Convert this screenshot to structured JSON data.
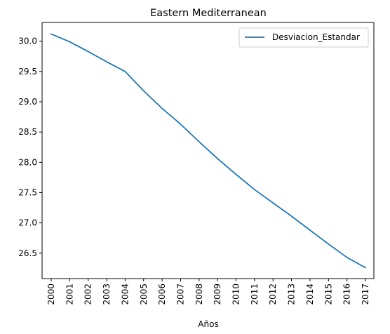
{
  "chart_data": {
    "type": "line",
    "title": "Eastern Mediterranean",
    "xlabel": "Años",
    "ylabel": "",
    "categories": [
      "2000",
      "2001",
      "2002",
      "2003",
      "2004",
      "2005",
      "2006",
      "2007",
      "2008",
      "2009",
      "2010",
      "2011",
      "2012",
      "2013",
      "2014",
      "2015",
      "2016",
      "2017"
    ],
    "series": [
      {
        "name": "Desviacion_Estandar",
        "color": "#1f77b4",
        "values": [
          30.12,
          29.99,
          29.83,
          29.66,
          29.5,
          29.18,
          28.89,
          28.63,
          28.34,
          28.06,
          27.8,
          27.55,
          27.33,
          27.11,
          26.88,
          26.65,
          26.43,
          26.26
        ]
      }
    ],
    "ylim": [
      26.08,
      30.31
    ],
    "yticks": [
      "26.5",
      "27.0",
      "27.5",
      "28.0",
      "28.5",
      "29.0",
      "29.5",
      "30.0"
    ],
    "grid": false,
    "legend_position": "upper right",
    "xtick_rotation": 90
  }
}
